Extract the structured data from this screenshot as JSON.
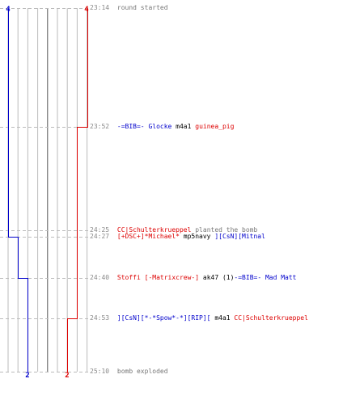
{
  "colors": {
    "team_blue": "#0000cc",
    "team_red": "#dd0000",
    "grid": "#bbbbbb",
    "center": "#555555",
    "dash": "#bbbbbb",
    "time_text": "#888888",
    "plain_text": "#777777",
    "black_text": "#000000"
  },
  "lanes": {
    "count": 8,
    "center_lane": 4
  },
  "time_axis": {
    "start": "23:14",
    "end": "25:10"
  },
  "counts": {
    "blue_top": "4",
    "red_top": "4",
    "blue_bottom": "2",
    "red_bottom": "2"
  },
  "steps": {
    "blue": [
      {
        "time": "23:14",
        "alive": 4
      },
      {
        "time": "24:27",
        "alive": 3
      },
      {
        "time": "24:40",
        "alive": 2
      },
      {
        "time": "25:10",
        "alive": 2
      }
    ],
    "red": [
      {
        "time": "23:14",
        "alive": 4
      },
      {
        "time": "23:52",
        "alive": 3
      },
      {
        "time": "24:53",
        "alive": 2
      },
      {
        "time": "25:10",
        "alive": 2
      }
    ]
  },
  "events": [
    {
      "time": "23:14",
      "parts": [
        {
          "text": "round started",
          "color": "#777777"
        }
      ]
    },
    {
      "time": "23:52",
      "parts": [
        {
          "text": "-=BIB=- Glocke",
          "color": "#0000cc"
        },
        {
          "text": " m4a1 ",
          "color": "#000000"
        },
        {
          "text": "guinea_pig",
          "color": "#dd0000"
        }
      ]
    },
    {
      "time": "24:25",
      "parts": [
        {
          "text": "CC|Schulterkrueppel",
          "color": "#dd0000"
        },
        {
          "text": " planted the bomb",
          "color": "#777777"
        }
      ]
    },
    {
      "time": "24:27",
      "parts": [
        {
          "text": "[+DSC+]*Michael*",
          "color": "#dd0000"
        },
        {
          "text": " mp5navy ",
          "color": "#000000"
        },
        {
          "text": "][CsN][Mitnal",
          "color": "#0000cc"
        }
      ]
    },
    {
      "time": "24:40",
      "parts": [
        {
          "text": "Stoffi [-Matrixcrew-]",
          "color": "#dd0000"
        },
        {
          "text": " ak47 (1)",
          "color": "#000000"
        },
        {
          "text": "-=BIB=- Mad Matt",
          "color": "#0000cc"
        }
      ]
    },
    {
      "time": "24:53",
      "parts": [
        {
          "text": "][CsN][*-*Spow*-*][RIP][",
          "color": "#0000cc"
        },
        {
          "text": " m4a1 ",
          "color": "#000000"
        },
        {
          "text": "CC|Schulterkrueppel",
          "color": "#dd0000"
        }
      ]
    },
    {
      "time": "25:10",
      "parts": [
        {
          "text": "bomb exploded",
          "color": "#777777"
        }
      ]
    }
  ]
}
